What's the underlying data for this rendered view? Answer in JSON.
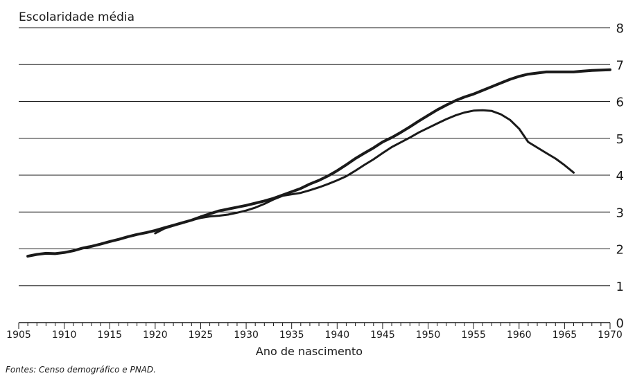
{
  "chart_data": {
    "type": "line",
    "title": "",
    "ylabel": "Escolaridade média",
    "xlabel": "Ano de nascimento",
    "source": "Fontes: Censo demográfico e PNAD.",
    "xlim": [
      1905,
      1970
    ],
    "ylim": [
      0,
      8
    ],
    "x_ticks": [
      "1905",
      "1910",
      "1915",
      "1920",
      "1925",
      "1930",
      "1935",
      "1940",
      "1945",
      "1950",
      "1955",
      "1960",
      "1965",
      "1970"
    ],
    "y_ticks": [
      "0",
      "1",
      "2",
      "3",
      "4",
      "5",
      "6",
      "7",
      "8"
    ],
    "grid": "horizontal",
    "y_axis_side": "right",
    "line_color": "#1a1a1a",
    "series": [
      {
        "x": [
          1906,
          1907,
          1908,
          1909,
          1910,
          1911,
          1912,
          1913,
          1914,
          1915,
          1916,
          1917,
          1918,
          1919,
          1920,
          1921,
          1922,
          1923,
          1924,
          1925,
          1926,
          1927,
          1928,
          1929,
          1930,
          1931,
          1932,
          1933,
          1934,
          1935,
          1936,
          1937,
          1938,
          1939,
          1940,
          1941,
          1942,
          1943,
          1944,
          1945,
          1946,
          1947,
          1948,
          1949,
          1950,
          1951,
          1952,
          1953,
          1954,
          1955,
          1956,
          1957,
          1958,
          1959,
          1960,
          1961,
          1962,
          1963,
          1964,
          1965,
          1966,
          1967,
          1968,
          1969,
          1970
        ],
        "values": [
          1.8,
          1.85,
          1.88,
          1.87,
          1.9,
          1.95,
          2.02,
          2.07,
          2.13,
          2.2,
          2.26,
          2.33,
          2.39,
          2.44,
          2.5,
          2.57,
          2.64,
          2.71,
          2.78,
          2.87,
          2.95,
          3.03,
          3.08,
          3.13,
          3.18,
          3.24,
          3.3,
          3.37,
          3.46,
          3.55,
          3.64,
          3.76,
          3.86,
          3.98,
          4.12,
          4.28,
          4.45,
          4.6,
          4.74,
          4.9,
          5.02,
          5.16,
          5.31,
          5.47,
          5.62,
          5.77,
          5.9,
          6.02,
          6.12,
          6.2,
          6.3,
          6.4,
          6.5,
          6.6,
          6.68,
          6.74,
          6.77,
          6.8,
          6.8,
          6.8,
          6.8,
          6.82,
          6.84,
          6.85,
          6.86
        ],
        "stroke_width": 4
      },
      {
        "x": [
          1920,
          1921,
          1922,
          1923,
          1924,
          1925,
          1926,
          1927,
          1928,
          1929,
          1930,
          1931,
          1932,
          1933,
          1934,
          1935,
          1936,
          1937,
          1938,
          1939,
          1940,
          1941,
          1942,
          1943,
          1944,
          1945,
          1946,
          1947,
          1948,
          1949,
          1950,
          1951,
          1952,
          1953,
          1954,
          1955,
          1956,
          1957,
          1958,
          1959,
          1960,
          1961,
          1962,
          1963,
          1964,
          1965,
          1966
        ],
        "values": [
          2.42,
          2.55,
          2.63,
          2.7,
          2.78,
          2.84,
          2.88,
          2.9,
          2.93,
          2.98,
          3.04,
          3.12,
          3.22,
          3.34,
          3.44,
          3.48,
          3.52,
          3.59,
          3.67,
          3.76,
          3.86,
          3.97,
          4.12,
          4.28,
          4.43,
          4.6,
          4.76,
          4.89,
          5.02,
          5.16,
          5.28,
          5.4,
          5.52,
          5.62,
          5.7,
          5.75,
          5.76,
          5.74,
          5.65,
          5.5,
          5.26,
          4.9,
          4.75,
          4.6,
          4.45,
          4.27,
          4.07
        ],
        "stroke_width": 3
      }
    ]
  }
}
